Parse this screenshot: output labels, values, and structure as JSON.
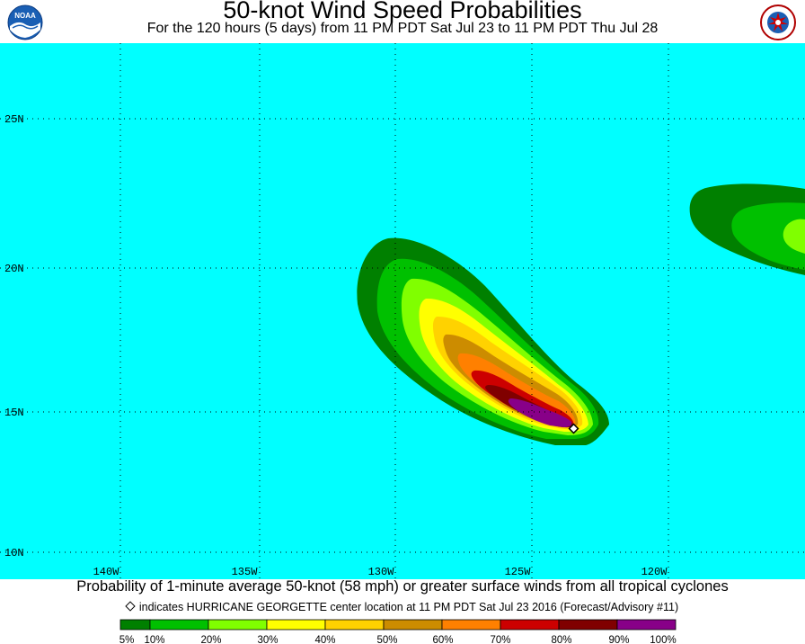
{
  "header": {
    "title": "50-knot Wind Speed Probabilities",
    "subtitle": "For the 120 hours (5 days) from 11 PM PDT Sat Jul 23 to 11 PM PDT Thu Jul 28",
    "left_logo_text": "NOAA",
    "right_logo_text": "NATIONAL WEATHER SERVICE"
  },
  "map": {
    "ocean_color": "#00FFFF",
    "lat_labels": [
      "25N",
      "20N",
      "15N",
      "10N"
    ],
    "lon_labels": [
      "140W",
      "135W",
      "130W",
      "125W",
      "120W"
    ],
    "storm_marker": "HURRICANE GEORGETTE center location"
  },
  "footer": {
    "caption": "Probability of 1-minute average 50-knot (58 mph) or greater surface winds from all tropical cyclones",
    "note": "indicates HURRICANE GEORGETTE center location at 11 PM PDT Sat Jul 23 2016 (Forecast/Advisory #11)"
  },
  "legend": {
    "colors": [
      "#008000",
      "#00C000",
      "#80FF00",
      "#FFFF00",
      "#FFD200",
      "#CC8C00",
      "#FF8000",
      "#CC0000",
      "#800000",
      "#880088"
    ],
    "labels": [
      "5%",
      "10%",
      "20%",
      "30%",
      "40%",
      "50%",
      "60%",
      "70%",
      "80%",
      "90%",
      "100%"
    ]
  }
}
